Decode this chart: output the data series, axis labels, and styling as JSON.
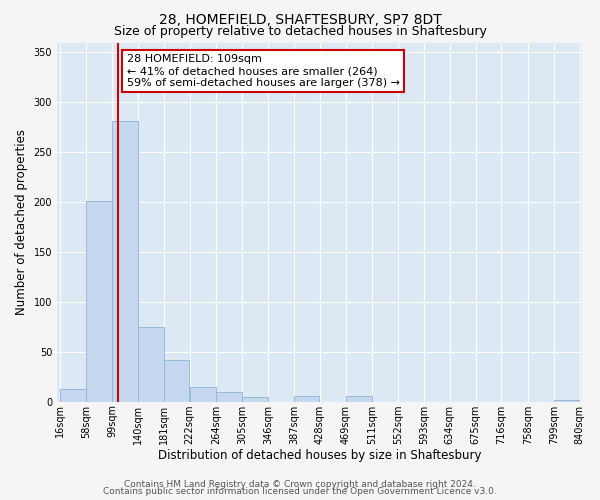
{
  "title": "28, HOMEFIELD, SHAFTESBURY, SP7 8DT",
  "subtitle": "Size of property relative to detached houses in Shaftesbury",
  "xlabel": "Distribution of detached houses by size in Shaftesbury",
  "ylabel": "Number of detached properties",
  "bar_edges": [
    16,
    58,
    99,
    140,
    181,
    222,
    264,
    305,
    346,
    387,
    428,
    469,
    511,
    552,
    593,
    634,
    675,
    716,
    758,
    799,
    840
  ],
  "bar_heights": [
    13,
    201,
    281,
    75,
    42,
    15,
    10,
    5,
    0,
    6,
    0,
    6,
    0,
    0,
    0,
    0,
    0,
    0,
    0,
    2
  ],
  "bar_color": "#c5d8f0",
  "bar_edge_color": "#8ab4d8",
  "tick_labels": [
    "16sqm",
    "58sqm",
    "99sqm",
    "140sqm",
    "181sqm",
    "222sqm",
    "264sqm",
    "305sqm",
    "346sqm",
    "387sqm",
    "428sqm",
    "469sqm",
    "511sqm",
    "552sqm",
    "593sqm",
    "634sqm",
    "675sqm",
    "716sqm",
    "758sqm",
    "799sqm",
    "840sqm"
  ],
  "vline_x": 109,
  "vline_color": "#cc0000",
  "ylim": [
    0,
    360
  ],
  "yticks": [
    0,
    50,
    100,
    150,
    200,
    250,
    300,
    350
  ],
  "annotation_text": "28 HOMEFIELD: 109sqm\n← 41% of detached houses are smaller (264)\n59% of semi-detached houses are larger (378) →",
  "annotation_box_facecolor": "#ffffff",
  "annotation_box_edgecolor": "#cc0000",
  "footer_line1": "Contains HM Land Registry data © Crown copyright and database right 2024.",
  "footer_line2": "Contains public sector information licensed under the Open Government Licence v3.0.",
  "fig_facecolor": "#f5f5f5",
  "plot_facecolor": "#dde8f5",
  "grid_color": "#ffffff",
  "title_fontsize": 10,
  "subtitle_fontsize": 9,
  "axis_label_fontsize": 8.5,
  "tick_fontsize": 7,
  "annotation_fontsize": 8,
  "footer_fontsize": 6.5
}
